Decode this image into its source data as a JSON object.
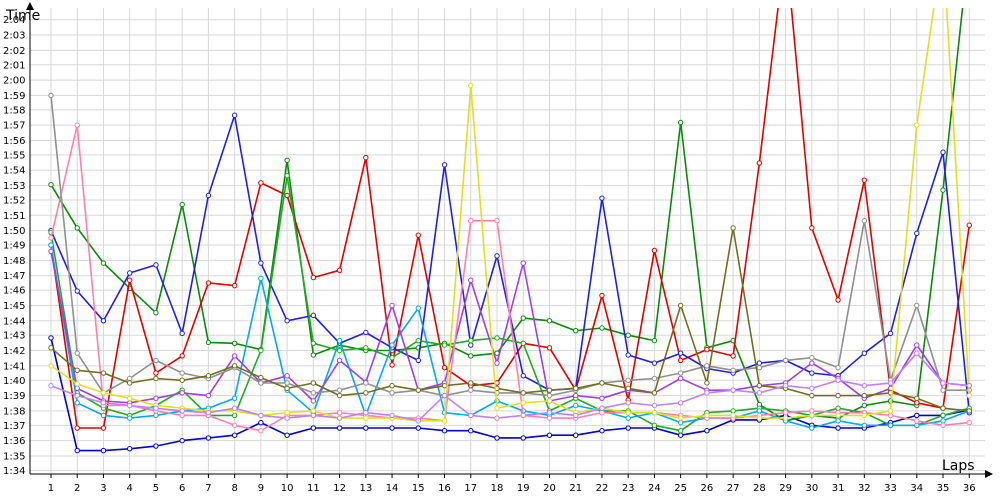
{
  "chart_data": {
    "type": "line",
    "title": "",
    "xlabel": "Laps",
    "ylabel": "Time",
    "x": [
      1,
      2,
      3,
      4,
      5,
      6,
      7,
      8,
      9,
      10,
      11,
      12,
      13,
      14,
      15,
      16,
      17,
      18,
      19,
      20,
      21,
      22,
      23,
      24,
      25,
      26,
      27,
      28,
      29,
      30,
      31,
      32,
      33,
      34,
      35,
      36
    ],
    "xlim": [
      0.2,
      36.6
    ],
    "ylim": [
      1.563,
      2.08
    ],
    "yticks": [
      {
        "v": 1.567,
        "label": "1:34"
      },
      {
        "v": 1.583,
        "label": "1:35"
      },
      {
        "v": 1.6,
        "label": "1:36"
      },
      {
        "v": 1.617,
        "label": "1:37"
      },
      {
        "v": 1.633,
        "label": "1:38"
      },
      {
        "v": 1.65,
        "label": "1:39"
      },
      {
        "v": 1.667,
        "label": "1:40"
      },
      {
        "v": 1.683,
        "label": "1:41"
      },
      {
        "v": 1.7,
        "label": "1:42"
      },
      {
        "v": 1.717,
        "label": "1:43"
      },
      {
        "v": 1.733,
        "label": "1:44"
      },
      {
        "v": 1.75,
        "label": "1:45"
      },
      {
        "v": 1.767,
        "label": "1:46"
      },
      {
        "v": 1.783,
        "label": "1:47"
      },
      {
        "v": 1.8,
        "label": "1:48"
      },
      {
        "v": 1.817,
        "label": "1:49"
      },
      {
        "v": 1.833,
        "label": "1:50"
      },
      {
        "v": 1.85,
        "label": "1:51"
      },
      {
        "v": 1.867,
        "label": "1:52"
      },
      {
        "v": 1.883,
        "label": "1:53"
      },
      {
        "v": 1.9,
        "label": "1:54"
      },
      {
        "v": 1.917,
        "label": "1:55"
      },
      {
        "v": 1.933,
        "label": "1:56"
      },
      {
        "v": 1.95,
        "label": "1:57"
      },
      {
        "v": 1.967,
        "label": "1:58"
      },
      {
        "v": 1.983,
        "label": "1:59"
      },
      {
        "v": 2.0,
        "label": "2:00"
      },
      {
        "v": 2.017,
        "label": "2:01"
      },
      {
        "v": 2.033,
        "label": "2:02"
      },
      {
        "v": 2.05,
        "label": "2:03"
      },
      {
        "v": 2.067,
        "label": "2:04"
      }
    ],
    "grid": true,
    "series": [
      {
        "color": "#0000cc",
        "values": [
          1.714,
          1.589,
          1.589,
          1.591,
          1.594,
          1.6,
          1.603,
          1.606,
          1.62,
          1.606,
          1.614,
          1.614,
          1.614,
          1.614,
          1.614,
          1.611,
          1.611,
          1.603,
          1.603,
          1.606,
          1.606,
          1.611,
          1.614,
          1.614,
          1.606,
          1.611,
          1.623,
          1.623,
          1.628,
          1.617,
          1.614,
          1.614,
          1.62,
          1.628,
          1.628,
          1.634
        ]
      },
      {
        "color": "#0a8a0a",
        "values": [
          1.884,
          1.836,
          1.797,
          1.769,
          1.742,
          1.862,
          1.709,
          1.708,
          1.701,
          1.911,
          1.695,
          1.706,
          1.7,
          1.7,
          1.703,
          1.708,
          1.694,
          1.697,
          1.736,
          1.733,
          1.722,
          1.725,
          1.717,
          1.711,
          1.953,
          1.703,
          1.711,
          1.64,
          1.622,
          1.628,
          1.625,
          1.639,
          1.644,
          1.639,
          1.878,
          2.15
        ]
      },
      {
        "color": "#e00000",
        "values": [
          1.817,
          1.614,
          1.614,
          1.778,
          1.675,
          1.694,
          1.775,
          1.772,
          1.886,
          1.872,
          1.781,
          1.789,
          1.914,
          1.684,
          1.828,
          1.681,
          1.661,
          1.664,
          1.708,
          1.703,
          1.656,
          1.761,
          1.645,
          1.811,
          1.689,
          1.701,
          1.694,
          1.908,
          2.15,
          1.836,
          1.756,
          1.889,
          1.656,
          1.642,
          1.636,
          1.839
        ]
      },
      {
        "color": "#2020e0",
        "values": [
          1.833,
          1.766,
          1.733,
          1.786,
          1.795,
          1.719,
          1.872,
          1.961,
          1.797,
          1.733,
          1.739,
          1.708,
          1.72,
          1.703,
          1.689,
          1.906,
          1.706,
          1.805,
          1.672,
          1.656,
          1.658,
          1.869,
          1.695,
          1.686,
          1.697,
          1.68,
          1.675,
          1.686,
          1.689,
          1.675,
          1.672,
          1.697,
          1.719,
          1.83,
          1.92,
          1.631
        ]
      },
      {
        "color": "#22aa22",
        "values": [
          1.831,
          1.653,
          1.636,
          1.628,
          1.639,
          1.656,
          1.628,
          1.628,
          1.7,
          1.894,
          1.708,
          1.7,
          1.703,
          1.692,
          1.711,
          1.706,
          1.711,
          1.714,
          1.708,
          1.633,
          1.647,
          1.633,
          1.633,
          1.617,
          1.611,
          1.631,
          1.633,
          1.636,
          1.633,
          1.628,
          1.636,
          1.631,
          1.617,
          1.617,
          1.628,
          1.636
        ]
      },
      {
        "color": "#00aaee",
        "values": [
          1.817,
          1.642,
          1.628,
          1.625,
          1.628,
          1.633,
          1.636,
          1.647,
          1.78,
          1.656,
          1.631,
          1.711,
          1.628,
          1.706,
          1.747,
          1.631,
          1.628,
          1.644,
          1.633,
          1.628,
          1.639,
          1.633,
          1.625,
          1.631,
          1.62,
          1.625,
          1.625,
          1.633,
          1.622,
          1.614,
          1.622,
          1.617,
          1.617,
          1.617,
          1.622,
          1.633
        ]
      },
      {
        "color": "#a040e0",
        "values": [
          1.81,
          1.658,
          1.644,
          1.642,
          1.647,
          1.653,
          1.65,
          1.694,
          1.664,
          1.672,
          1.644,
          1.689,
          1.665,
          1.75,
          1.656,
          1.664,
          1.778,
          1.686,
          1.797,
          1.644,
          1.65,
          1.647,
          1.656,
          1.653,
          1.669,
          1.656,
          1.656,
          1.661,
          1.664,
          1.686,
          1.669,
          1.647,
          1.658,
          1.706,
          1.664,
          1.661
        ]
      },
      {
        "color": "#ff80b0",
        "values": [
          1.825,
          1.95,
          1.639,
          1.639,
          1.633,
          1.628,
          1.628,
          1.617,
          1.611,
          1.628,
          1.628,
          1.631,
          1.628,
          1.625,
          1.625,
          1.622,
          1.844,
          1.844,
          1.628,
          1.625,
          1.625,
          1.631,
          1.631,
          1.631,
          1.628,
          1.625,
          1.625,
          1.628,
          1.631,
          1.633,
          1.631,
          1.631,
          1.628,
          1.622,
          1.617,
          1.62
        ]
      },
      {
        "color": "#909090",
        "values": [
          1.983,
          1.697,
          1.653,
          1.669,
          1.689,
          1.675,
          1.669,
          1.681,
          1.664,
          1.664,
          1.653,
          1.656,
          1.664,
          1.653,
          1.656,
          1.65,
          1.656,
          1.653,
          1.653,
          1.65,
          1.656,
          1.664,
          1.667,
          1.669,
          1.675,
          1.683,
          1.678,
          1.681,
          1.689,
          1.692,
          1.681,
          1.844,
          1.667,
          1.75,
          1.656,
          1.656
        ]
      },
      {
        "color": "#707020",
        "values": [
          1.703,
          1.678,
          1.675,
          1.664,
          1.669,
          1.667,
          1.672,
          1.683,
          1.67,
          1.658,
          1.664,
          1.65,
          1.653,
          1.661,
          1.656,
          1.661,
          1.664,
          1.658,
          1.653,
          1.656,
          1.658,
          1.664,
          1.658,
          1.653,
          1.75,
          1.664,
          1.836,
          1.661,
          1.658,
          1.65,
          1.65,
          1.65,
          1.653,
          1.647,
          1.636,
          1.633
        ]
      },
      {
        "color": "#e0e020",
        "values": [
          1.683,
          1.663,
          1.653,
          1.647,
          1.639,
          1.636,
          1.633,
          1.633,
          1.628,
          1.631,
          1.633,
          1.625,
          1.625,
          1.625,
          1.622,
          1.622,
          1.994,
          1.636,
          1.642,
          1.644,
          1.631,
          1.636,
          1.631,
          1.631,
          1.625,
          1.628,
          1.628,
          1.625,
          1.625,
          1.628,
          1.628,
          1.628,
          1.633,
          1.95,
          2.15,
          1.65
        ]
      },
      {
        "color": "#c080ff",
        "values": [
          1.661,
          1.65,
          1.642,
          1.639,
          1.636,
          1.633,
          1.631,
          1.636,
          1.628,
          1.625,
          1.628,
          1.625,
          1.631,
          1.628,
          1.622,
          1.65,
          1.628,
          1.625,
          1.628,
          1.631,
          1.628,
          1.636,
          1.642,
          1.639,
          1.642,
          1.653,
          1.656,
          1.653,
          1.661,
          1.658,
          1.667,
          1.661,
          1.664,
          1.697,
          1.664,
          1.661
        ]
      }
    ]
  }
}
